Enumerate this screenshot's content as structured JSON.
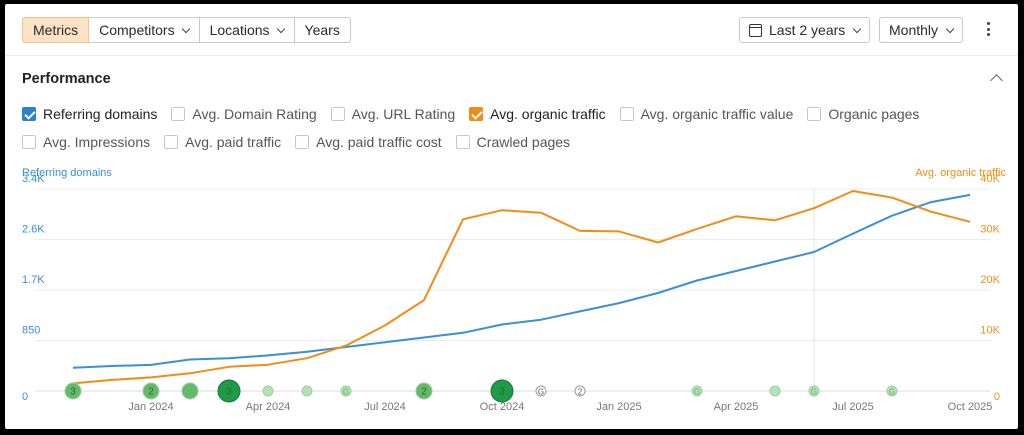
{
  "toolbar": {
    "tabs": [
      {
        "label": "Metrics",
        "active": true,
        "dropdown": false
      },
      {
        "label": "Competitors",
        "active": false,
        "dropdown": true
      },
      {
        "label": "Locations",
        "active": false,
        "dropdown": true
      },
      {
        "label": "Years",
        "active": false,
        "dropdown": false
      }
    ],
    "date_range": "Last 2 years",
    "granularity": "Monthly"
  },
  "panel": {
    "title": "Performance",
    "metrics_row1": [
      {
        "label": "Referring domains",
        "checked": true,
        "color": "#2e7fd1"
      },
      {
        "label": "Avg. Domain Rating",
        "checked": false
      },
      {
        "label": "Avg. URL Rating",
        "checked": false
      },
      {
        "label": "Avg. organic traffic",
        "checked": true,
        "color": "#f28c17"
      },
      {
        "label": "Avg. organic traffic value",
        "checked": false
      },
      {
        "label": "Organic pages",
        "checked": false
      }
    ],
    "metrics_row2": [
      {
        "label": "Avg. Impressions",
        "checked": false
      },
      {
        "label": "Avg. paid traffic",
        "checked": false
      },
      {
        "label": "Avg. paid traffic cost",
        "checked": false
      },
      {
        "label": "Crawled pages",
        "checked": false
      }
    ]
  },
  "chart_data": {
    "type": "line",
    "left_axis_title": "Referring domains",
    "right_axis_title": "Avg. organic traffic",
    "left_ticks": [
      "0",
      "850",
      "1.7K",
      "2.6K",
      "3.4K"
    ],
    "left_ylim": [
      0,
      3400
    ],
    "right_ticks": [
      "0",
      "10K",
      "20K",
      "30K",
      "40K"
    ],
    "right_ylim": [
      0,
      40000
    ],
    "x_tick_labels": [
      "Jan 2024",
      "Apr 2024",
      "Jul 2024",
      "Oct 2024",
      "Jan 2025",
      "Apr 2025",
      "Jul 2025",
      "Oct 2025"
    ],
    "x": [
      "2023-11",
      "2023-12",
      "2024-01",
      "2024-02",
      "2024-03",
      "2024-04",
      "2024-05",
      "2024-06",
      "2024-07",
      "2024-08",
      "2024-09",
      "2024-10",
      "2024-11",
      "2024-12",
      "2025-01",
      "2025-02",
      "2025-03",
      "2025-04",
      "2025-05",
      "2025-06",
      "2025-07",
      "2025-08",
      "2025-09",
      "2025-10"
    ],
    "series": [
      {
        "name": "Referring domains",
        "axis": "left",
        "color": "#3a8fd6",
        "values": [
          390,
          420,
          440,
          530,
          550,
          600,
          660,
          740,
          820,
          900,
          980,
          1120,
          1200,
          1340,
          1480,
          1650,
          1860,
          2020,
          2180,
          2340,
          2650,
          2950,
          3180,
          3300
        ]
      },
      {
        "name": "Avg. organic traffic",
        "axis": "right",
        "color": "#f28c17",
        "values": [
          1500,
          2200,
          2700,
          3500,
          4800,
          5200,
          6500,
          9000,
          13000,
          18000,
          34000,
          35800,
          35300,
          31700,
          31600,
          29400,
          32100,
          34600,
          33800,
          36200,
          39600,
          38300,
          35500,
          33500
        ]
      }
    ],
    "highlight_date": "2025-06",
    "annotations": {
      "label": "G",
      "markers": [
        {
          "date": "2023-11",
          "text": "3",
          "size": "medium",
          "color": "#62ba6a"
        },
        {
          "date": "2024-01",
          "text": "2",
          "size": "medium",
          "color": "#62ba6a"
        },
        {
          "date": "2024-02",
          "text": "",
          "size": "medium",
          "color": "#62ba6a"
        },
        {
          "date": "2024-03",
          "text": "3",
          "size": "large",
          "color": "#1f9a4a"
        },
        {
          "date": "2024-04",
          "text": "",
          "size": "small",
          "color": "#b6e0b6"
        },
        {
          "date": "2024-05",
          "text": "",
          "size": "small",
          "color": "#b6e0b6"
        },
        {
          "date": "2024-06",
          "text": "G",
          "size": "small",
          "color": "#b6e0b6"
        },
        {
          "date": "2024-08",
          "text": "2",
          "size": "medium",
          "color": "#62ba6a"
        },
        {
          "date": "2024-10",
          "text": "3",
          "size": "large",
          "color": "#1f9a4a"
        },
        {
          "date": "2024-11",
          "text": "G",
          "size": "small",
          "color": "#ffffff"
        },
        {
          "date": "2024-12",
          "text": "2",
          "size": "small",
          "color": "#ffffff"
        },
        {
          "date": "2025-03",
          "text": "G",
          "size": "small",
          "color": "#b6e0b6"
        },
        {
          "date": "2025-05",
          "text": "",
          "size": "small",
          "color": "#b6e0b6"
        },
        {
          "date": "2025-06",
          "text": "G",
          "size": "small",
          "color": "#b6e0b6"
        },
        {
          "date": "2025-08",
          "text": "G",
          "size": "small",
          "color": "#b6e0b6"
        }
      ]
    }
  }
}
